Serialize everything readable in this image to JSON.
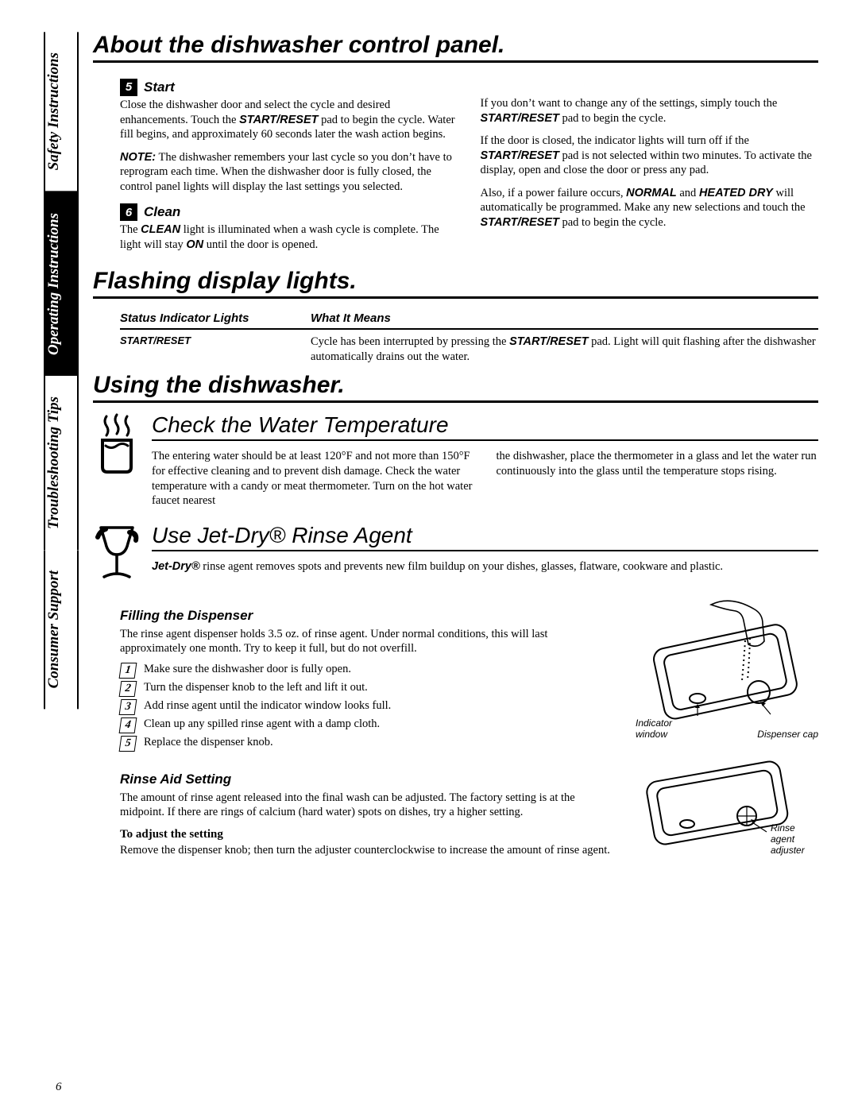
{
  "tabs": {
    "safety": {
      "label": "Safety Instructions",
      "active": false
    },
    "operating": {
      "label": "Operating Instructions",
      "active": true
    },
    "tips": {
      "label": "Troubleshooting Tips",
      "active": false
    },
    "support": {
      "label": "Consumer Support",
      "active": false
    }
  },
  "page_number": "6",
  "s1_title": "About the dishwasher control panel.",
  "step5_num": "5",
  "step5_title": "Start",
  "step5_p1": "Close the dishwasher door and select the cycle and desired enhancements. Touch the ",
  "step5_p1b": "START/RESET",
  "step5_p1c": " pad to begin the cycle. Water fill begins, and approximately 60 seconds later the wash action begins.",
  "step5_note_label": "NOTE:",
  "step5_note": "The dishwasher remembers your last cycle so you don’t have to reprogram each time. When the dishwasher door is fully closed, the control panel lights will display the last settings you selected.",
  "step5_r1": "If you don’t want to change any of the settings, simply touch the ",
  "step5_r1b": "START/RESET",
  "step5_r1c": " pad to begin the cycle.",
  "step5_r2": "If the door is closed, the indicator lights will turn off if the ",
  "step5_r2b": "START/RESET",
  "step5_r2c": " pad is not selected within two minutes. To activate the display, open and close the door or press any pad.",
  "step5_r3": "Also, if a power failure occurs, ",
  "step5_r3b": "NORMAL",
  "step5_r3c": " and ",
  "step5_r3d": "HEATED DRY",
  "step5_r3e": " will automatically be programmed. Make any new selections and touch the ",
  "step5_r3f": "START/RESET",
  "step5_r3g": " pad to begin the cycle.",
  "step6_num": "6",
  "step6_title": "Clean",
  "step6_p1": "The ",
  "step6_p1b": "CLEAN",
  "step6_p1c": " light is illuminated when a wash cycle is complete. The light will stay ",
  "step6_p1d": "ON",
  "step6_p1e": " until the door is opened.",
  "s2_title": "Flashing display lights.",
  "table_h1": "Status Indicator Lights",
  "table_h2": "What It Means",
  "table_c1": "START/RESET",
  "table_c2a": "Cycle has been interrupted by pressing the ",
  "table_c2b": "START/RESET",
  "table_c2c": " pad. Light will quit flashing after the dishwasher automatically drains out the water.",
  "s3_title": "Using the dishwasher.",
  "s3a_title": "Check the Water Temperature",
  "s3a_l": "The entering water should be at least 120°F and not more than 150°F for effective cleaning and to prevent dish damage. Check the water temperature with a candy or meat thermometer. Turn on the hot water faucet nearest",
  "s3a_r": "the dishwasher, place the thermometer in a glass and let the water run continuously into the glass until the temperature stops rising.",
  "s3b_title": "Use Jet-Dry® Rinse Agent",
  "s3b_p_a": "Jet-Dry®",
  "s3b_p_b": " rinse agent removes spots and prevents new film buildup on your dishes, glasses, flatware, cookware and plastic.",
  "fill_title": "Filling the Dispenser",
  "fill_p": "The rinse agent dispenser holds 3.5 oz. of rinse agent. Under normal conditions, this will last approximately one month. Try to keep it full, but do not overfill.",
  "fill_steps": [
    "Make sure the dishwasher door is fully open.",
    "Turn the dispenser knob to the left and lift it out.",
    "Add rinse agent until the indicator window looks full.",
    "Clean up any spilled rinse agent with a damp cloth.",
    "Replace the dispenser knob."
  ],
  "fig1_label1": "Indicator window",
  "fig1_label2": "Dispenser cap",
  "rinse_title": "Rinse Aid Setting",
  "rinse_p": "The amount of rinse agent released into the final wash can be adjusted. The factory setting is at the midpoint. If there are rings of calcium (hard water) spots on dishes, try a higher setting.",
  "rinse_h4": "To adjust the setting",
  "rinse_p2": "Remove the dispenser knob; then turn the adjuster counterclockwise to increase the amount of rinse agent.",
  "fig2_label": "Rinse agent adjuster",
  "colors": {
    "accent": "#000000",
    "bg": "#ffffff"
  }
}
